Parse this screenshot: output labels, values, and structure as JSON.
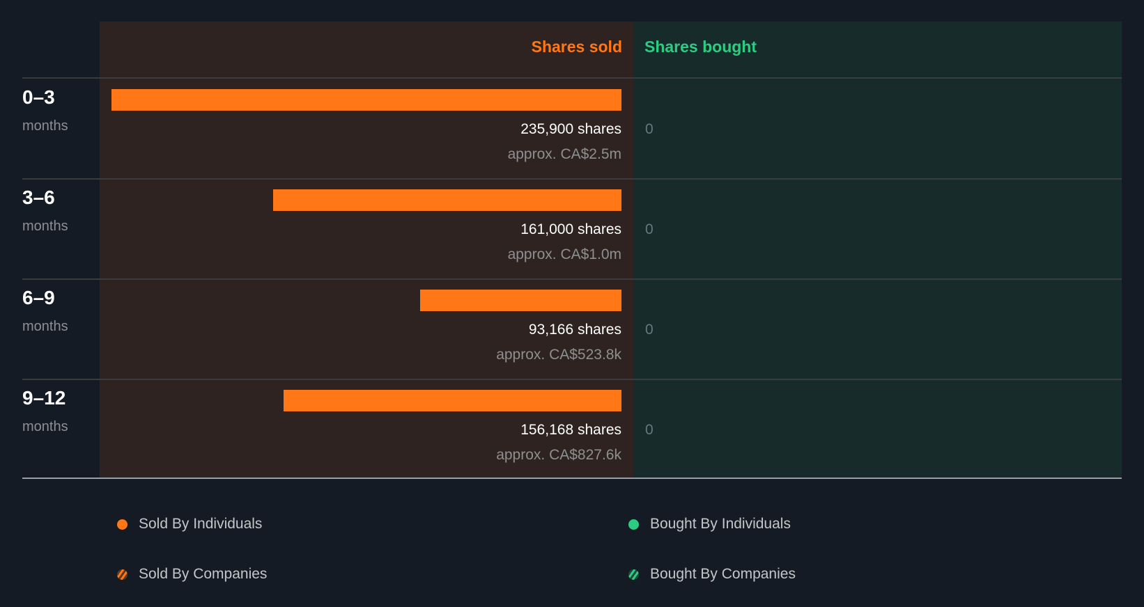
{
  "chart_data": {
    "type": "bar",
    "orientation": "horizontal",
    "title": "",
    "column_headers": {
      "sold": "Shares sold",
      "bought": "Shares bought"
    },
    "categories": [
      {
        "period": "0–3",
        "unit": "months"
      },
      {
        "period": "3–6",
        "unit": "months"
      },
      {
        "period": "6–9",
        "unit": "months"
      },
      {
        "period": "9–12",
        "unit": "months"
      }
    ],
    "series": [
      {
        "name": "Shares sold",
        "values": [
          235900,
          161000,
          93166,
          156168
        ],
        "labels": [
          "235,900 shares",
          "161,000 shares",
          "93,166 shares",
          "156,168 shares"
        ],
        "value_labels": [
          "approx. CA$2.5m",
          "approx. CA$1.0m",
          "approx. CA$523.8k",
          "approx. CA$827.6k"
        ]
      },
      {
        "name": "Shares bought",
        "values": [
          0,
          0,
          0,
          0
        ],
        "labels": [
          "0",
          "0",
          "0",
          "0"
        ]
      }
    ],
    "legend": [
      {
        "label": "Sold By Individuals",
        "color": "#ff7717",
        "style": "solid"
      },
      {
        "label": "Bought By Individuals",
        "color": "#2ecc82",
        "style": "solid"
      },
      {
        "label": "Sold By Companies",
        "color": "#ff7717",
        "style": "striped"
      },
      {
        "label": "Bought By Companies",
        "color": "#2ecc82",
        "style": "striped"
      }
    ],
    "legend_position": "bottom",
    "colors": {
      "sold": "#ff7717",
      "bought": "#2ecc82"
    }
  }
}
